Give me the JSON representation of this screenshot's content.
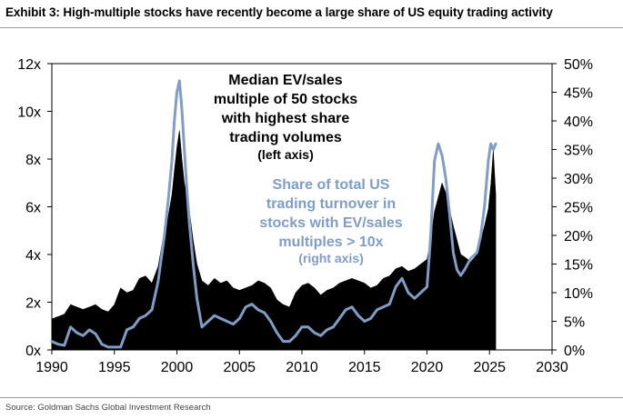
{
  "title": "Exhibit 3: High-multiple stocks have recently become a large share of US equity trading activity",
  "source": "Source: Goldman Sachs Global Investment Research",
  "chart_data": {
    "type": "area",
    "x_ticks": [
      "1990",
      "1995",
      "2000",
      "2005",
      "2010",
      "2015",
      "2020",
      "2025",
      "2030"
    ],
    "xlim": [
      1990,
      2030
    ],
    "left_axis": {
      "ticks": [
        "0x",
        "2x",
        "4x",
        "6x",
        "8x",
        "10x",
        "12x"
      ],
      "ylim": [
        0,
        12
      ]
    },
    "right_axis": {
      "ticks": [
        "0%",
        "5%",
        "10%",
        "15%",
        "20%",
        "25%",
        "30%",
        "35%",
        "40%",
        "45%",
        "50%"
      ],
      "ylim": [
        0,
        50
      ]
    },
    "grid": false,
    "annotations": {
      "black": [
        "Median EV/sales",
        "multiple of 50 stocks",
        "with highest share",
        "trading volumes",
        "(left axis)"
      ],
      "blue": [
        "Share of total US",
        "trading turnover in",
        "stocks with EV/sales",
        "multiples > 10x",
        "(right axis)"
      ]
    },
    "series": [
      {
        "axis": "left",
        "color": "#000000",
        "style": "area",
        "x": [
          1990.0,
          1990.5,
          1991.0,
          1991.5,
          1992.0,
          1992.5,
          1993.0,
          1993.5,
          1994.0,
          1994.5,
          1995.0,
          1995.5,
          1996.0,
          1996.5,
          1997.0,
          1997.5,
          1998.0,
          1998.5,
          1999.0,
          1999.3,
          1999.6,
          1999.8,
          2000.0,
          2000.2,
          2000.4,
          2000.6,
          2000.8,
          2001.0,
          2001.3,
          2001.6,
          2002.0,
          2002.5,
          2003.0,
          2003.5,
          2004.0,
          2004.5,
          2005.0,
          2005.5,
          2006.0,
          2006.5,
          2007.0,
          2007.5,
          2008.0,
          2008.5,
          2009.0,
          2009.5,
          2010.0,
          2010.5,
          2011.0,
          2011.5,
          2012.0,
          2012.5,
          2013.0,
          2013.5,
          2014.0,
          2014.5,
          2015.0,
          2015.5,
          2016.0,
          2016.5,
          2017.0,
          2017.5,
          2018.0,
          2018.5,
          2019.0,
          2019.5,
          2020.0,
          2020.3,
          2020.6,
          2020.9,
          2021.2,
          2021.5,
          2021.8,
          2022.1,
          2022.4,
          2022.7,
          2023.0,
          2023.5,
          2024.0,
          2024.3,
          2024.6,
          2024.9,
          2025.1,
          2025.3,
          2025.5
        ],
        "y": [
          1.3,
          1.4,
          1.5,
          1.9,
          1.8,
          1.7,
          1.8,
          1.9,
          1.7,
          1.6,
          1.9,
          2.6,
          2.4,
          2.5,
          3.0,
          3.1,
          2.8,
          3.5,
          5.0,
          5.6,
          6.5,
          7.5,
          8.5,
          9.2,
          8.0,
          7.0,
          6.5,
          5.8,
          4.6,
          3.6,
          2.9,
          2.7,
          3.0,
          2.8,
          2.9,
          2.6,
          2.5,
          2.6,
          2.7,
          2.9,
          2.8,
          2.6,
          2.1,
          1.9,
          1.8,
          2.4,
          2.7,
          2.8,
          2.6,
          2.3,
          2.5,
          2.6,
          2.8,
          2.9,
          3.0,
          2.9,
          2.8,
          2.6,
          2.7,
          3.0,
          3.1,
          3.4,
          3.5,
          3.3,
          3.4,
          3.6,
          3.8,
          4.6,
          5.8,
          6.4,
          7.0,
          6.6,
          5.9,
          5.2,
          4.6,
          4.0,
          3.9,
          3.7,
          4.0,
          4.6,
          5.2,
          5.9,
          6.9,
          8.4,
          6.5
        ]
      },
      {
        "axis": "right",
        "color": "#7f9dc6",
        "style": "line",
        "x": [
          1990.0,
          1990.5,
          1991.0,
          1991.5,
          1992.0,
          1992.5,
          1993.0,
          1993.5,
          1994.0,
          1994.5,
          1995.0,
          1995.5,
          1996.0,
          1996.5,
          1997.0,
          1997.5,
          1998.0,
          1998.5,
          1999.0,
          1999.3,
          1999.6,
          1999.8,
          2000.0,
          2000.2,
          2000.4,
          2000.6,
          2000.8,
          2001.0,
          2001.3,
          2001.6,
          2002.0,
          2002.5,
          2003.0,
          2003.5,
          2004.0,
          2004.5,
          2005.0,
          2005.5,
          2006.0,
          2006.5,
          2007.0,
          2007.5,
          2008.0,
          2008.5,
          2009.0,
          2009.5,
          2010.0,
          2010.5,
          2011.0,
          2011.5,
          2012.0,
          2012.5,
          2013.0,
          2013.5,
          2014.0,
          2014.5,
          2015.0,
          2015.5,
          2016.0,
          2016.5,
          2017.0,
          2017.5,
          2018.0,
          2018.5,
          2019.0,
          2019.5,
          2020.0,
          2020.3,
          2020.6,
          2020.9,
          2021.2,
          2021.5,
          2021.8,
          2022.1,
          2022.4,
          2022.7,
          2023.0,
          2023.5,
          2024.0,
          2024.3,
          2024.6,
          2024.9,
          2025.1,
          2025.3,
          2025.5
        ],
        "y": [
          1.5,
          1.0,
          0.8,
          4.0,
          3.0,
          2.5,
          3.5,
          2.8,
          1.0,
          0.5,
          0.5,
          0.5,
          3.5,
          4.0,
          5.5,
          6.0,
          7.0,
          12.0,
          20.0,
          26.0,
          33.0,
          40.0,
          45.0,
          47.0,
          42.0,
          35.0,
          28.0,
          22.0,
          15.0,
          9.0,
          4.0,
          5.0,
          6.0,
          5.5,
          5.0,
          4.5,
          5.5,
          7.5,
          8.0,
          7.0,
          6.5,
          5.0,
          3.0,
          1.5,
          1.5,
          2.5,
          4.0,
          4.0,
          3.0,
          2.5,
          3.5,
          4.0,
          5.5,
          7.0,
          7.5,
          6.0,
          5.0,
          5.5,
          7.0,
          7.5,
          8.0,
          11.0,
          12.5,
          10.0,
          9.0,
          10.0,
          11.0,
          20.0,
          33.0,
          36.0,
          34.0,
          30.0,
          24.0,
          17.0,
          14.0,
          13.0,
          14.0,
          16.0,
          17.0,
          20.0,
          25.0,
          33.0,
          36.0,
          35.0,
          36.0
        ]
      }
    ]
  }
}
